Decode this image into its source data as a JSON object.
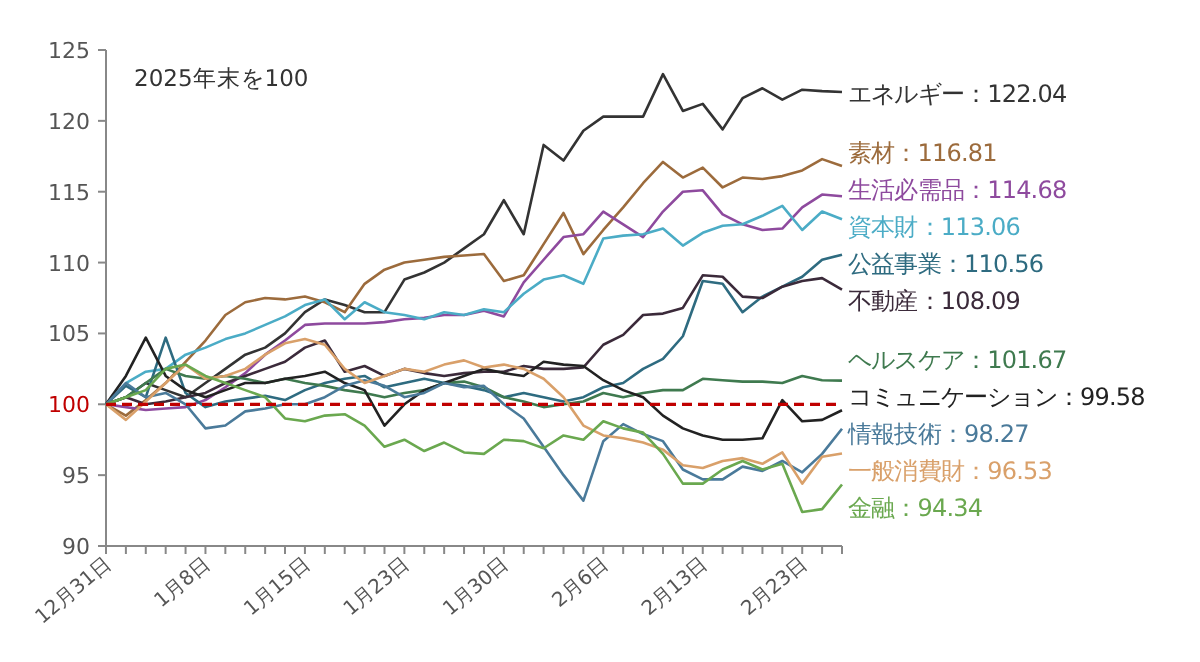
{
  "chart_data": {
    "type": "line",
    "annotations": [
      "2025年末を100"
    ],
    "categories": [
      "12月31日",
      null,
      null,
      null,
      null,
      "1月8日",
      null,
      null,
      null,
      null,
      "1月15日",
      null,
      null,
      null,
      null,
      "1月23日",
      null,
      null,
      null,
      null,
      "1月30日",
      null,
      null,
      null,
      null,
      "2月6日",
      null,
      null,
      null,
      null,
      "2月13日",
      null,
      null,
      null,
      null,
      "2月23日",
      null,
      null
    ],
    "ylim": [
      90,
      125
    ],
    "yticks": [
      90,
      95,
      100,
      105,
      110,
      115,
      120,
      125
    ],
    "grid": false,
    "legend": false,
    "marker": "none",
    "line_style": "solid",
    "ref_lines": [
      {
        "axis": "y",
        "value": 100,
        "color": "#c00000",
        "line_style": "dashed"
      }
    ],
    "series": [
      {
        "name": "エネルギー",
        "color": "#333333",
        "values": [
          100,
          100.5,
          101.5,
          101,
          100.5,
          101.5,
          102.5,
          103.5,
          104,
          105,
          106.5,
          107.4,
          107,
          106.5,
          106.5,
          108.8,
          109.3,
          110,
          111,
          112,
          114.4,
          112,
          118.3,
          117.2,
          119.3,
          120.3,
          120.3,
          120.3,
          123.3,
          120.7,
          121.2,
          119.4,
          121.6,
          122.3,
          121.5,
          122.2,
          122.1,
          122.04
        ],
        "value_labels": [
          null,
          null,
          null,
          null,
          null,
          null,
          null,
          null,
          null,
          null,
          null,
          null,
          null,
          null,
          null,
          null,
          null,
          null,
          null,
          null,
          null,
          null,
          null,
          null,
          null,
          null,
          null,
          null,
          null,
          null,
          null,
          null,
          null,
          null,
          null,
          null,
          null,
          "：122.04"
        ]
      },
      {
        "name": "素材",
        "color": "#9c6b3c",
        "values": [
          100,
          99.2,
          100.3,
          101.5,
          103,
          104.5,
          106.3,
          107.2,
          107.5,
          107.4,
          107.6,
          107.2,
          106.5,
          108.5,
          109.5,
          110,
          110.2,
          110.4,
          110.5,
          110.6,
          108.7,
          109.1,
          111.3,
          113.5,
          110.6,
          112.3,
          113.9,
          115.6,
          117.1,
          116,
          116.7,
          115.3,
          116,
          115.9,
          116.1,
          116.5,
          117.3,
          116.81
        ],
        "value_labels": [
          null,
          null,
          null,
          null,
          null,
          null,
          null,
          null,
          null,
          null,
          null,
          null,
          null,
          null,
          null,
          null,
          null,
          null,
          null,
          null,
          null,
          null,
          null,
          null,
          null,
          null,
          null,
          null,
          null,
          null,
          null,
          null,
          null,
          null,
          null,
          null,
          null,
          "：116.81"
        ]
      },
      {
        "name": "生活必需品",
        "color": "#8e4a9e",
        "values": [
          100,
          99.8,
          99.6,
          99.7,
          99.8,
          100.3,
          101.2,
          102.2,
          103.5,
          104.5,
          105.6,
          105.7,
          105.7,
          105.7,
          105.8,
          106,
          106.1,
          106.3,
          106.3,
          106.6,
          106.2,
          108.6,
          110.2,
          111.8,
          112,
          113.6,
          112.7,
          111.8,
          113.6,
          115,
          115.1,
          113.4,
          112.7,
          112.3,
          112.4,
          113.9,
          114.8,
          114.68
        ],
        "value_labels": [
          null,
          null,
          null,
          null,
          null,
          null,
          null,
          null,
          null,
          null,
          null,
          null,
          null,
          null,
          null,
          null,
          null,
          null,
          null,
          null,
          null,
          null,
          null,
          null,
          null,
          null,
          null,
          null,
          null,
          null,
          null,
          null,
          null,
          null,
          null,
          null,
          null,
          "：114.68"
        ]
      },
      {
        "name": "資本財",
        "color": "#4bacc6",
        "values": [
          100,
          101.5,
          102.3,
          102.5,
          103.5,
          104,
          104.6,
          105,
          105.6,
          106.2,
          107,
          107.4,
          106,
          107.2,
          106.5,
          106.3,
          106,
          106.5,
          106.3,
          106.7,
          106.5,
          107.8,
          108.8,
          109.1,
          108.5,
          111.7,
          111.9,
          112,
          112.4,
          111.2,
          112.1,
          112.6,
          112.7,
          113.3,
          114,
          112.3,
          113.6,
          113.06
        ],
        "value_labels": [
          null,
          null,
          null,
          null,
          null,
          null,
          null,
          null,
          null,
          null,
          null,
          null,
          null,
          null,
          null,
          null,
          null,
          null,
          null,
          null,
          null,
          null,
          null,
          null,
          null,
          null,
          null,
          null,
          null,
          null,
          null,
          null,
          null,
          null,
          null,
          null,
          null,
          "：113.06"
        ]
      },
      {
        "name": "公益事業",
        "color": "#2e6b80",
        "values": [
          100,
          101.3,
          100.5,
          104.7,
          100.8,
          99.8,
          100.2,
          100.4,
          100.6,
          100.3,
          101,
          101.5,
          101.8,
          102,
          101.2,
          101.5,
          101.8,
          101.5,
          101.3,
          101,
          100.5,
          100.8,
          100.5,
          100.2,
          100.5,
          101.2,
          101.5,
          102.5,
          103.2,
          104.8,
          108.7,
          108.5,
          106.5,
          107.6,
          108.3,
          109,
          110.2,
          110.56
        ],
        "value_labels": [
          null,
          null,
          null,
          null,
          null,
          null,
          null,
          null,
          null,
          null,
          null,
          null,
          null,
          null,
          null,
          null,
          null,
          null,
          null,
          null,
          null,
          null,
          null,
          null,
          null,
          null,
          null,
          null,
          null,
          null,
          null,
          null,
          null,
          null,
          null,
          null,
          null,
          "：110.56"
        ]
      },
      {
        "name": "不動産",
        "color": "#3b2a3a",
        "values": [
          100,
          100.5,
          100,
          100.2,
          100.5,
          100.8,
          101.5,
          102,
          102.5,
          103,
          104,
          104.5,
          102.3,
          102.7,
          102,
          102.5,
          102.2,
          102,
          102.2,
          102.3,
          102.3,
          102.7,
          102.5,
          102.5,
          102.6,
          104.2,
          104.9,
          106.3,
          106.4,
          106.8,
          109.1,
          109,
          107.6,
          107.5,
          108.3,
          108.7,
          108.9,
          108.09
        ],
        "value_labels": [
          null,
          null,
          null,
          null,
          null,
          null,
          null,
          null,
          null,
          null,
          null,
          null,
          null,
          null,
          null,
          null,
          null,
          null,
          null,
          null,
          null,
          null,
          null,
          null,
          null,
          null,
          null,
          null,
          null,
          null,
          null,
          null,
          null,
          null,
          null,
          null,
          null,
          "：108.09"
        ]
      },
      {
        "name": "ヘルスケア",
        "color": "#3f7a4f",
        "values": [
          100,
          100.5,
          101.5,
          102.5,
          102,
          101.8,
          102,
          101.8,
          101.5,
          101.8,
          101.5,
          101.3,
          101,
          100.8,
          100.5,
          100.8,
          101,
          101.5,
          101.6,
          101.2,
          100.5,
          100.2,
          99.8,
          100,
          100.2,
          100.8,
          100.5,
          100.8,
          101,
          101,
          101.8,
          101.7,
          101.6,
          101.6,
          101.5,
          102,
          101.7,
          101.67
        ],
        "value_labels": [
          null,
          null,
          null,
          null,
          null,
          null,
          null,
          null,
          null,
          null,
          null,
          null,
          null,
          null,
          null,
          null,
          null,
          null,
          null,
          null,
          null,
          null,
          null,
          null,
          null,
          null,
          null,
          null,
          null,
          null,
          null,
          null,
          null,
          null,
          null,
          null,
          null,
          "：101.67"
        ]
      },
      {
        "name": "コミュニケーション",
        "color": "#222222",
        "values": [
          100,
          102,
          104.7,
          102,
          101,
          100.5,
          101,
          101.5,
          101.5,
          101.8,
          102,
          102.3,
          101.5,
          101,
          98.5,
          100,
          101,
          101.5,
          102,
          102.5,
          102.2,
          102,
          103,
          102.8,
          102.7,
          101.7,
          101,
          100.5,
          99.2,
          98.3,
          97.8,
          97.5,
          97.5,
          97.6,
          100.3,
          98.8,
          98.9,
          99.58
        ],
        "value_labels": [
          null,
          null,
          null,
          null,
          null,
          null,
          null,
          null,
          null,
          null,
          null,
          null,
          null,
          null,
          null,
          null,
          null,
          null,
          null,
          null,
          null,
          null,
          null,
          null,
          null,
          null,
          null,
          null,
          null,
          null,
          null,
          null,
          null,
          null,
          null,
          null,
          null,
          "：99.58"
        ]
      },
      {
        "name": "情報技術",
        "color": "#4a7a9a",
        "values": [
          100,
          101.5,
          100.5,
          100.8,
          100,
          98.3,
          98.5,
          99.5,
          99.7,
          100,
          100,
          100.5,
          101.3,
          101.7,
          101.3,
          100.5,
          100.8,
          101.5,
          101.2,
          101.3,
          100,
          99,
          97,
          95,
          93.2,
          97.4,
          98.6,
          97.9,
          97.4,
          95.4,
          94.7,
          94.7,
          95.6,
          95.3,
          96,
          95.2,
          96.5,
          98.27
        ],
        "value_labels": [
          null,
          null,
          null,
          null,
          null,
          null,
          null,
          null,
          null,
          null,
          null,
          null,
          null,
          null,
          null,
          null,
          null,
          null,
          null,
          null,
          null,
          null,
          null,
          null,
          null,
          null,
          null,
          null,
          null,
          null,
          null,
          null,
          null,
          null,
          null,
          null,
          null,
          "：98.27"
        ]
      },
      {
        "name": "一般消費財",
        "color": "#d9a06a",
        "values": [
          100,
          98.9,
          100.2,
          101.5,
          102.8,
          101.8,
          102,
          102.5,
          103.5,
          104.3,
          104.6,
          104.2,
          102.5,
          101.5,
          102,
          102.5,
          102.3,
          102.8,
          103.1,
          102.6,
          102.8,
          102.5,
          101.8,
          100.5,
          98.5,
          97.8,
          97.6,
          97.3,
          96.8,
          95.7,
          95.5,
          96,
          96.2,
          95.8,
          96.6,
          94.4,
          96.3,
          96.53
        ],
        "value_labels": [
          null,
          null,
          null,
          null,
          null,
          null,
          null,
          null,
          null,
          null,
          null,
          null,
          null,
          null,
          null,
          null,
          null,
          null,
          null,
          null,
          null,
          null,
          null,
          null,
          null,
          null,
          null,
          null,
          null,
          null,
          null,
          null,
          null,
          null,
          null,
          null,
          null,
          "：96.53"
        ]
      },
      {
        "name": "金融",
        "color": "#6aa84f",
        "values": [
          100,
          100.5,
          101,
          102.5,
          102.8,
          102,
          101.5,
          101,
          100.5,
          99,
          98.8,
          99.2,
          99.3,
          98.5,
          97,
          97.5,
          96.7,
          97.3,
          96.6,
          96.5,
          97.5,
          97.4,
          96.9,
          97.8,
          97.5,
          98.8,
          98.3,
          98,
          96.5,
          94.4,
          94.4,
          95.4,
          96,
          95.4,
          95.8,
          92.4,
          92.6,
          94.34
        ],
        "value_labels": [
          null,
          null,
          null,
          null,
          null,
          null,
          null,
          null,
          null,
          null,
          null,
          null,
          null,
          null,
          null,
          null,
          null,
          null,
          null,
          null,
          null,
          null,
          null,
          null,
          null,
          null,
          null,
          null,
          null,
          null,
          null,
          null,
          null,
          null,
          null,
          null,
          null,
          "：94.34"
        ]
      }
    ]
  }
}
